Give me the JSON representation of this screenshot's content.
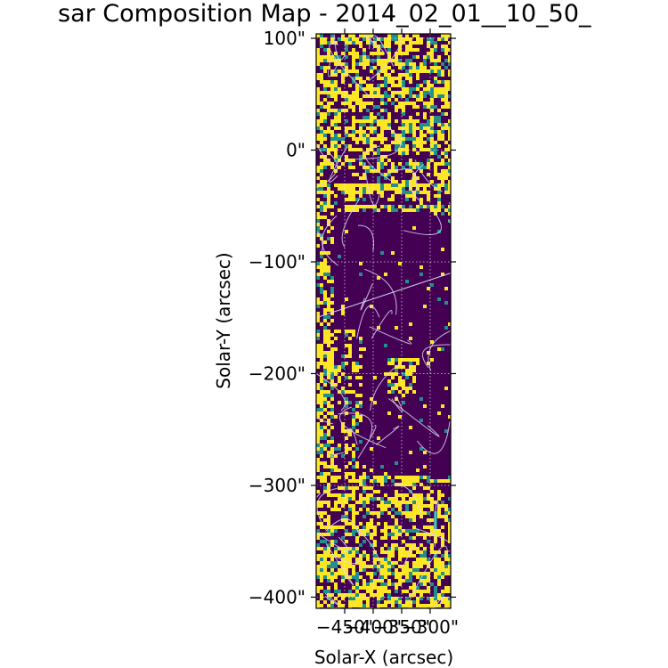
{
  "chart_data": {
    "type": "heatmap",
    "title": "sar Composition Map - 2014_02_01__10_50_",
    "xlabel": "Solar-X (arcsec)",
    "ylabel": "Solar-Y (arcsec)",
    "xlim": [
      -500,
      -264
    ],
    "ylim": [
      -410,
      104
    ],
    "x_ticks": [
      {
        "value": -450,
        "label": "−450\""
      },
      {
        "value": -400,
        "label": "−400\""
      },
      {
        "value": -350,
        "label": "−350\""
      },
      {
        "value": -300,
        "label": "−300\""
      }
    ],
    "y_ticks": [
      {
        "value": 100,
        "label": "100\""
      },
      {
        "value": 0,
        "label": "0\""
      },
      {
        "value": -100,
        "label": "−100\""
      },
      {
        "value": -200,
        "label": "−200\""
      },
      {
        "value": -300,
        "label": "−300\""
      },
      {
        "value": -400,
        "label": "−400\""
      }
    ],
    "grid": true,
    "colormap": "viridis",
    "colors": {
      "low": "#440154",
      "mid": "#21908d",
      "high": "#fde725",
      "contour": "#d8d8f0",
      "grid": "#ffffff"
    },
    "regions_yellow_dominant_y": [
      [
        -55,
        104
      ],
      [
        -410,
        -290
      ]
    ],
    "region_dark_dominant_y": [
      -290,
      -55
    ]
  }
}
